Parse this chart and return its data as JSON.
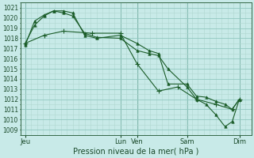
{
  "title": "Pression niveau de la mer( hPa )",
  "bg_color": "#c8eae8",
  "grid_color_minor": "#b0d8d0",
  "grid_color_major": "#90c8c0",
  "line_color": "#1a5c28",
  "ylim": [
    1008.5,
    1021.5
  ],
  "yticks": [
    1009,
    1010,
    1011,
    1012,
    1013,
    1014,
    1015,
    1016,
    1017,
    1018,
    1019,
    1020,
    1021
  ],
  "xtick_labels": [
    "Jeu",
    "Lun",
    "Ven",
    "Sam",
    "Dim"
  ],
  "xtick_positions": [
    0,
    40,
    47,
    68,
    90
  ],
  "vline_positions": [
    0,
    40,
    47,
    68,
    90
  ],
  "xlim": [
    -2,
    95
  ],
  "line1_x": [
    0,
    4,
    8,
    12,
    16,
    20,
    25,
    30,
    40,
    47,
    52,
    56,
    60,
    68,
    72,
    76,
    80,
    84,
    87,
    90
  ],
  "line1_y": [
    1017.5,
    1019.3,
    1020.2,
    1020.7,
    1020.5,
    1020.2,
    1018.5,
    1018.1,
    1018.0,
    1016.8,
    1016.5,
    1016.3,
    1015.0,
    1013.2,
    1012.0,
    1011.5,
    1010.5,
    1009.3,
    1009.8,
    1012.0
  ],
  "line2_x": [
    0,
    4,
    8,
    12,
    16,
    20,
    25,
    30,
    40,
    47,
    52,
    56,
    60,
    68,
    72,
    76,
    80,
    84,
    87,
    90
  ],
  "line2_y": [
    1017.3,
    1019.7,
    1020.3,
    1020.7,
    1020.7,
    1020.5,
    1018.3,
    1018.0,
    1018.3,
    1017.5,
    1016.8,
    1016.5,
    1013.5,
    1013.5,
    1012.3,
    1012.2,
    1011.8,
    1011.5,
    1011.0,
    1012.0
  ],
  "line3_x": [
    0,
    8,
    16,
    28,
    40,
    47,
    56,
    64,
    72,
    80,
    87,
    90
  ],
  "line3_y": [
    1017.5,
    1018.3,
    1018.7,
    1018.5,
    1018.5,
    1015.5,
    1012.8,
    1013.2,
    1012.0,
    1011.5,
    1011.0,
    1012.0
  ]
}
